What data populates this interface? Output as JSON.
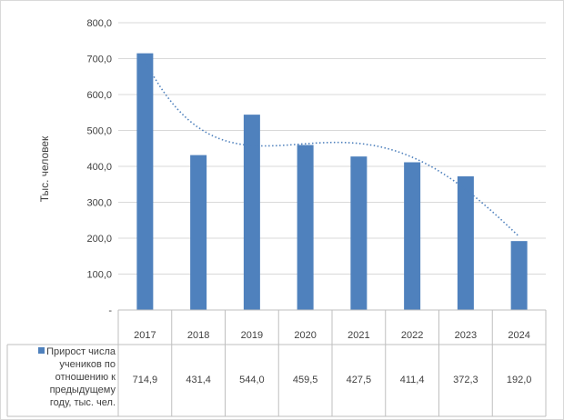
{
  "chart_data": {
    "type": "bar",
    "categories": [
      "2017",
      "2018",
      "2019",
      "2020",
      "2021",
      "2022",
      "2023",
      "2024"
    ],
    "series": [
      {
        "name": "Прирост числа учеников по отношению к предыдущему году, тыс. чел.",
        "legend_lines": [
          "Прирост числа",
          "учеников по",
          "отношению к",
          "предыдущему",
          "году, тыс. чел."
        ],
        "values": [
          714.9,
          431.4,
          544.0,
          459.5,
          427.5,
          411.4,
          372.3,
          192.0
        ],
        "value_labels": [
          "714,9",
          "431,4",
          "544,0",
          "459,5",
          "427,5",
          "411,4",
          "372,3",
          "192,0"
        ],
        "color": "#4f81bd"
      }
    ],
    "ylabel": "Тыс. человек",
    "xlabel": "",
    "title": "",
    "ylim": [
      0,
      800
    ],
    "yticks": [
      0,
      100,
      200,
      300,
      400,
      500,
      600,
      700,
      800
    ],
    "ytick_labels": [
      "-",
      "100,0",
      "200,0",
      "300,0",
      "400,0",
      "500,0",
      "600,0",
      "700,0",
      "800,0"
    ],
    "trendline": {
      "type": "polynomial",
      "style": "dotted",
      "color": "#4f81bd"
    },
    "grid": true,
    "legend": "data-table",
    "data_table": true
  }
}
